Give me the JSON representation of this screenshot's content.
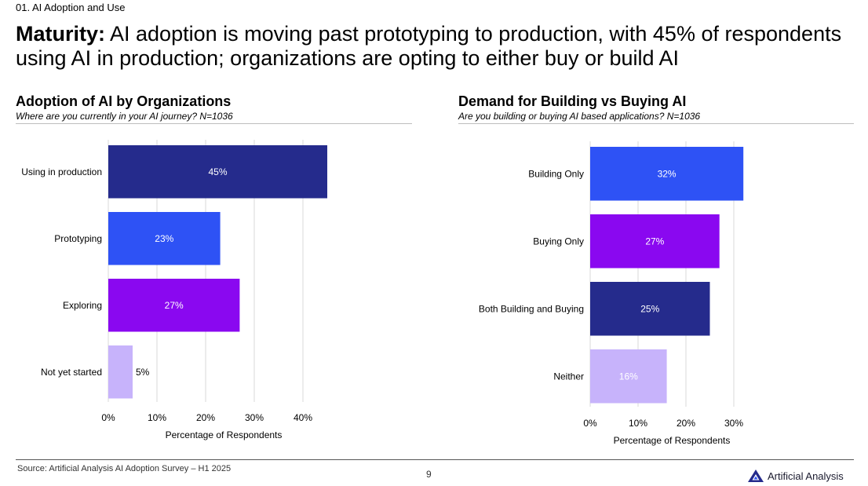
{
  "section_label": "01. AI Adoption and Use",
  "headline": {
    "lead": "Maturity:",
    "text": "AI adoption is moving past prototyping to production, with 45% of respondents using AI in production; organizations are opting to either buy or build AI"
  },
  "colors": {
    "dark_navy": "#252b8c",
    "bright_blue": "#2e52f5",
    "purple": "#8a08f0",
    "lavender": "#c7b3fb",
    "gridline": "#d9d9d9"
  },
  "chart_data": [
    {
      "type": "bar",
      "orientation": "horizontal",
      "title": "Adoption of AI by Organizations",
      "subtitle": "Where are you currently in your AI journey? N=1036",
      "categories": [
        "Using in production",
        "Prototyping",
        "Exploring",
        "Not yet started"
      ],
      "values": [
        45,
        23,
        27,
        5
      ],
      "value_labels": [
        "45%",
        "23%",
        "27%",
        "5%"
      ],
      "bar_colors": [
        "#252b8c",
        "#2e52f5",
        "#8a08f0",
        "#c7b3fb"
      ],
      "xlabel": "Percentage of Respondents",
      "xticks": [
        "0%",
        "10%",
        "20%",
        "30%",
        "40%"
      ],
      "xlim": [
        0,
        45
      ],
      "grid": true
    },
    {
      "type": "bar",
      "orientation": "horizontal",
      "title": "Demand for Building vs Buying AI",
      "subtitle": "Are you building or buying AI based applications? N=1036",
      "categories": [
        "Building Only",
        "Buying Only",
        "Both Building and Buying",
        "Neither"
      ],
      "values": [
        32,
        27,
        25,
        16
      ],
      "value_labels": [
        "32%",
        "27%",
        "25%",
        "16%"
      ],
      "bar_colors": [
        "#2e52f5",
        "#8a08f0",
        "#252b8c",
        "#c7b3fb"
      ],
      "xlabel": "Percentage of Respondents",
      "xticks": [
        "0%",
        "10%",
        "20%",
        "30%"
      ],
      "xlim": [
        0,
        32
      ],
      "grid": true
    }
  ],
  "footer": {
    "source": "Source: Artificial Analysis AI Adoption Survey – H1 2025",
    "page_number": "9",
    "brand": "Artificial Analysis",
    "brand_icon": "triangle-logo-icon"
  }
}
